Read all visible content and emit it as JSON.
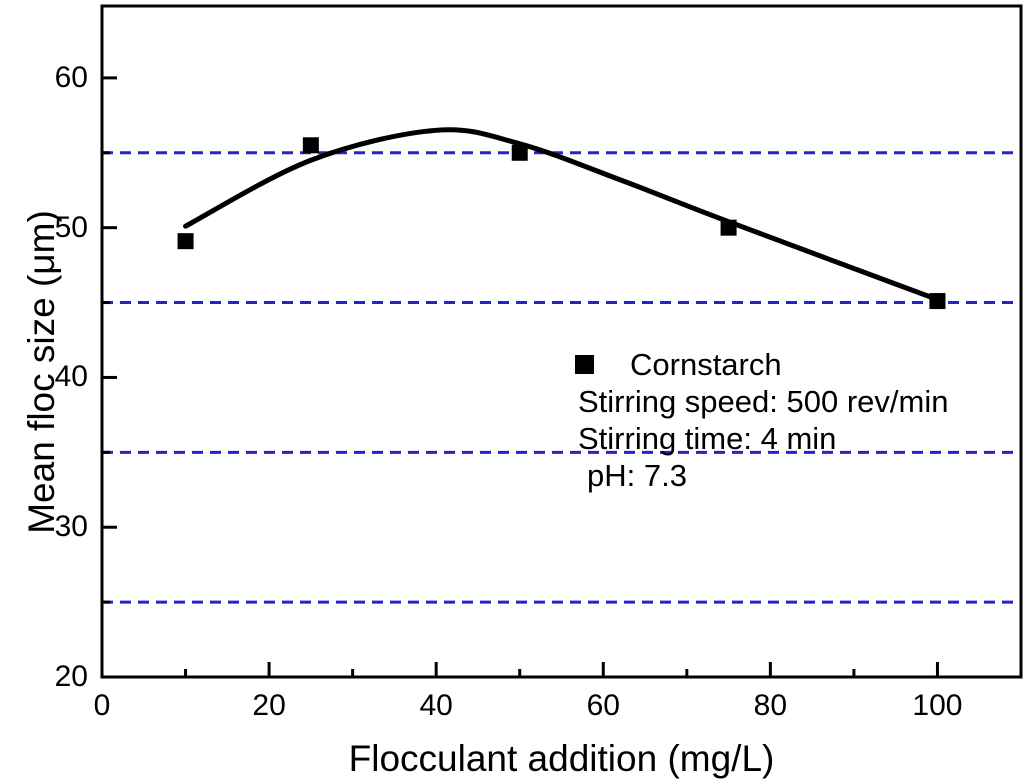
{
  "chart_data": {
    "type": "scatter",
    "title": "",
    "xlabel": "Flocculant addition (mg/L)",
    "ylabel": "Mean floc size (μm)",
    "xlim": [
      0,
      110
    ],
    "ylim": [
      20,
      64.8
    ],
    "x_major_ticks": [
      0,
      20,
      40,
      60,
      80,
      100
    ],
    "x_minor_ticks": [
      10,
      30,
      50,
      70,
      90
    ],
    "y_major_ticks": [
      20,
      30,
      40,
      50,
      60
    ],
    "y_minor_ticks": [
      25,
      35,
      45,
      55
    ],
    "series": [
      {
        "name": "Cornstarch",
        "marker": "square",
        "color": "#000000",
        "x": [
          10,
          25,
          50,
          75,
          100
        ],
        "y": [
          49.1,
          55.5,
          55.0,
          50.0,
          45.1
        ]
      }
    ],
    "fit_curve": {
      "color": "#000000",
      "points": [
        [
          10,
          50.1
        ],
        [
          25,
          54.5
        ],
        [
          40,
          56.5
        ],
        [
          50,
          55.6
        ],
        [
          62,
          53.2
        ],
        [
          75,
          50.4
        ],
        [
          100,
          45.2
        ]
      ]
    },
    "gridlines": {
      "axis": "y",
      "y_values": [
        25,
        35,
        45,
        55
      ],
      "style": "dashed",
      "color": "#2323cd"
    },
    "legend_position": "center-right",
    "grid": "horizontal-dashed-only",
    "annotations": [
      "Stirring speed: 500 rev/min",
      "Stirring time: 4 min",
      "pH: 7.3"
    ]
  },
  "figure": {
    "background_color": "#ffffff",
    "frame_color": "#000000"
  }
}
